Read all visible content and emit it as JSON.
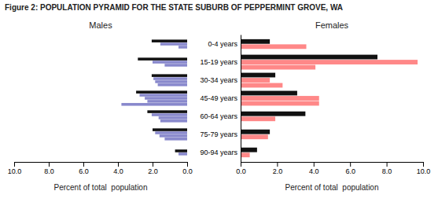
{
  "title": "Figure 2: POPULATION PYRAMID FOR THE STATE SUBURB OF PEPPERMINT GROVE, WA",
  "chart_data": [
    {
      "type": "bar",
      "orientation": "horizontal",
      "title": "Males",
      "xlabel": "Percent of total  population",
      "values": [
        [
          0.5,
          0.7
        ],
        [
          1.3,
          1.6,
          1.85,
          2.0
        ],
        [
          1.55,
          1.65,
          2.05,
          2.3
        ],
        [
          3.8,
          2.3,
          2.45,
          2.75,
          2.95
        ],
        [
          1.7,
          1.85,
          1.95,
          2.05
        ],
        [
          1.3,
          2.0,
          2.85
        ],
        [
          0.5,
          1.55,
          2.05
        ]
      ],
      "colors": [
        [
          "#8888cc",
          "#111111"
        ],
        [
          "#8888cc",
          "#8888cc",
          "#8888cc",
          "#111111"
        ],
        [
          "#8888cc",
          "#8888cc",
          "#8888cc",
          "#111111"
        ],
        [
          "#8888cc",
          "#8888cc",
          "#8888cc",
          "#8888cc",
          "#111111"
        ],
        [
          "#8888cc",
          "#8888cc",
          "#8888cc",
          "#111111"
        ],
        [
          "#8888cc",
          "#8888cc",
          "#111111"
        ],
        [
          "#8888cc",
          "#8888cc",
          "#111111"
        ]
      ],
      "xlim": [
        10.0,
        0
      ],
      "xticks": [
        {
          "value": 0,
          "label": "0.0"
        },
        {
          "value": 2,
          "label": "2.0"
        },
        {
          "value": 4,
          "label": "4.0"
        },
        {
          "value": 6,
          "label": "6.0"
        },
        {
          "value": 8,
          "label": "8.0"
        },
        {
          "value": 10,
          "label": "10.0"
        }
      ]
    },
    {
      "type": "bar",
      "orientation": "horizontal",
      "title": "Females",
      "xlabel": "Percent of total  population",
      "categories": [
        "90-94 years",
        "75-79 years",
        "60-64 years",
        "45-49 years",
        "30-34 years",
        "15-19 years",
        "0-4 years"
      ],
      "values": [
        [
          0.5,
          0.9
        ],
        [
          1.5,
          1.6
        ],
        [
          1.9,
          3.55
        ],
        [
          4.3,
          4.3,
          3.1
        ],
        [
          2.3,
          1.6,
          1.9
        ],
        [
          4.1,
          9.7,
          7.5
        ],
        [
          3.6,
          1.6
        ]
      ],
      "colors": [
        [
          "#ff8888",
          "#111111"
        ],
        [
          "#ff8888",
          "#111111"
        ],
        [
          "#ff8888",
          "#111111"
        ],
        [
          "#ff8888",
          "#ff8888",
          "#111111"
        ],
        [
          "#ff8888",
          "#ff8888",
          "#111111"
        ],
        [
          "#ff8888",
          "#ff8888",
          "#111111"
        ],
        [
          "#ff8888",
          "#111111"
        ]
      ],
      "xlim": [
        0,
        10.0
      ],
      "xticks": [
        {
          "value": 0,
          "label": "0.0"
        },
        {
          "value": 2,
          "label": "2.0"
        },
        {
          "value": 4,
          "label": "4.0"
        },
        {
          "value": 6,
          "label": "6.0"
        },
        {
          "value": 8,
          "label": "8.0"
        },
        {
          "value": 10,
          "label": "10.0"
        }
      ]
    }
  ]
}
